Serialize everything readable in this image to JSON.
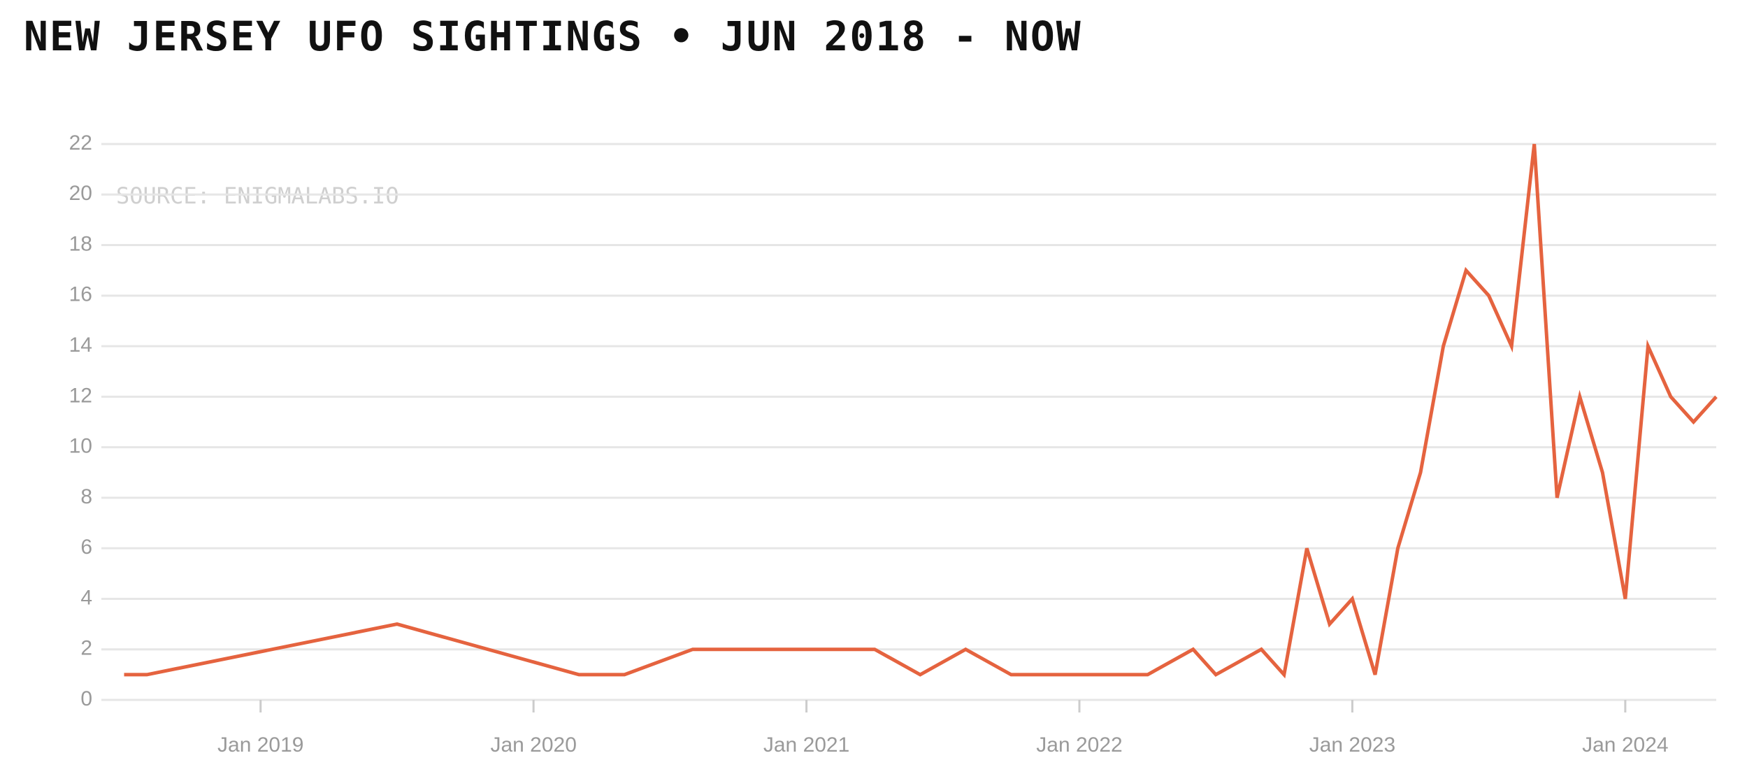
{
  "chart_data": {
    "type": "line",
    "title": "NEW JERSEY UFO SIGHTINGS • JUN 2018 - NOW",
    "annotation": "SOURCE: ENIGMALABS.IO",
    "x": [
      "2018-07",
      "2018-08",
      "2019-07",
      "2020-03",
      "2020-05",
      "2020-08",
      "2021-04",
      "2021-06",
      "2021-08",
      "2021-10",
      "2022-04",
      "2022-06",
      "2022-07",
      "2022-09",
      "2022-10",
      "2022-11",
      "2022-12",
      "2023-01",
      "2023-02",
      "2023-03",
      "2023-04",
      "2023-05",
      "2023-06",
      "2023-07",
      "2023-08",
      "2023-09",
      "2023-10",
      "2023-11",
      "2023-12",
      "2024-01",
      "2024-02",
      "2024-03",
      "2024-04",
      "2024-05"
    ],
    "values": [
      1,
      1,
      3,
      1,
      1,
      2,
      2,
      1,
      2,
      1,
      1,
      2,
      1,
      2,
      1,
      6,
      3,
      4,
      1,
      6,
      9,
      14,
      17,
      16,
      14,
      22,
      8,
      12,
      9,
      4,
      14,
      12,
      11,
      12
    ],
    "color": "#e5633f",
    "xlim": [
      "2018-06",
      "2024-05"
    ],
    "xticks": [
      {
        "value": "2019-01",
        "label": "Jan 2019"
      },
      {
        "value": "2020-01",
        "label": "Jan 2020"
      },
      {
        "value": "2021-01",
        "label": "Jan 2021"
      },
      {
        "value": "2022-01",
        "label": "Jan 2022"
      },
      {
        "value": "2023-01",
        "label": "Jan 2023"
      },
      {
        "value": "2024-01",
        "label": "Jan 2024"
      }
    ],
    "ylim": [
      0,
      22
    ],
    "yticks": [
      0,
      2,
      4,
      6,
      8,
      10,
      12,
      14,
      16,
      18,
      20,
      22
    ],
    "grid": true
  }
}
